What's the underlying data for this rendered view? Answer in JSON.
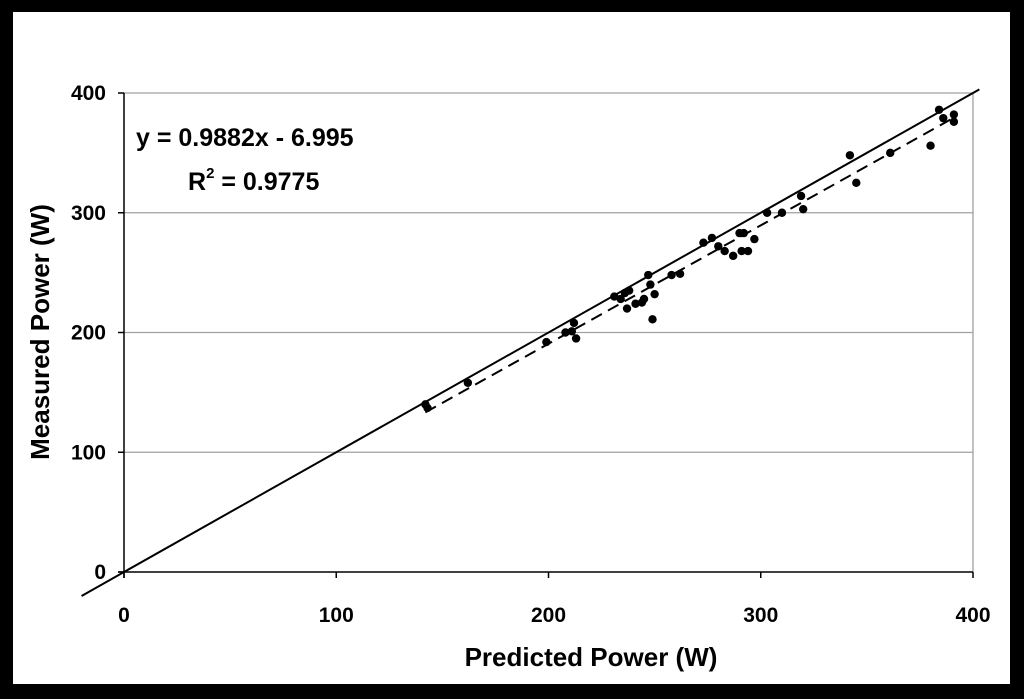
{
  "chart_data": {
    "type": "scatter",
    "xlabel": "Predicted Power (W)",
    "ylabel": "Measured Power (W)",
    "xlim": [
      0,
      400
    ],
    "ylim": [
      0,
      400
    ],
    "x_ticks": [
      "0",
      "100",
      "200",
      "300",
      "400"
    ],
    "y_ticks": [
      "0",
      "100",
      "200",
      "300",
      "400"
    ],
    "grid": "horizontal",
    "equation": {
      "fit": "y = 0.9882x - 6.995",
      "r2_prefix": "R",
      "r2_exp": "2",
      "r2_value": " = 0.9775"
    },
    "reference_line": {
      "style": "solid",
      "slope": 1,
      "intercept": 0
    },
    "fit_line": {
      "style": "dashed",
      "slope": 0.9882,
      "intercept": -6.995,
      "x_range": [
        142,
        392
      ]
    },
    "points": [
      [
        142,
        140
      ],
      [
        143,
        137
      ],
      [
        162,
        158
      ],
      [
        199,
        192
      ],
      [
        208,
        200
      ],
      [
        211,
        201
      ],
      [
        212,
        208
      ],
      [
        213,
        195
      ],
      [
        231,
        230
      ],
      [
        234,
        228
      ],
      [
        236,
        233
      ],
      [
        237,
        220
      ],
      [
        238,
        235
      ],
      [
        241,
        224
      ],
      [
        244,
        225
      ],
      [
        245,
        228
      ],
      [
        247,
        248
      ],
      [
        248,
        240
      ],
      [
        249,
        211
      ],
      [
        250,
        232
      ],
      [
        258,
        248
      ],
      [
        262,
        249
      ],
      [
        273,
        275
      ],
      [
        277,
        279
      ],
      [
        280,
        272
      ],
      [
        283,
        268
      ],
      [
        287,
        264
      ],
      [
        290,
        283
      ],
      [
        291,
        268
      ],
      [
        292,
        283
      ],
      [
        294,
        268
      ],
      [
        297,
        278
      ],
      [
        303,
        300
      ],
      [
        310,
        300
      ],
      [
        319,
        314
      ],
      [
        320,
        303
      ],
      [
        342,
        348
      ],
      [
        345,
        325
      ],
      [
        361,
        350
      ],
      [
        380,
        356
      ],
      [
        384,
        386
      ],
      [
        386,
        379
      ],
      [
        391,
        382
      ],
      [
        391,
        376
      ]
    ],
    "colors": {
      "points": "#000000",
      "grid": "#a0a0a0",
      "background": "#000000",
      "plot": "#ffffff"
    }
  }
}
